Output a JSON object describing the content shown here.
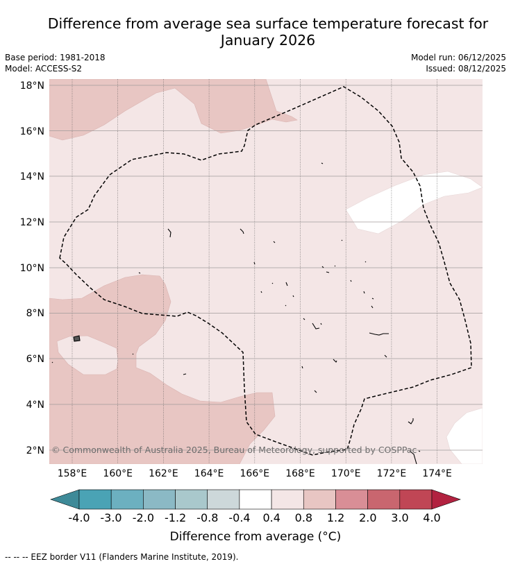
{
  "title": "Difference from average sea surface temperature forecast for January 2026",
  "title_line1": "Difference from average sea surface temperature forecast for",
  "title_line2": "January 2026",
  "meta": {
    "base_period": "Base period: 1981-2018",
    "model": "Model: ACCESS-S2",
    "model_run": "Model run: 06/12/2025",
    "issued": "Issued: 08/12/2025"
  },
  "map": {
    "lat_labels": [
      "18°N",
      "16°N",
      "14°N",
      "12°N",
      "10°N",
      "8°N",
      "6°N",
      "4°N",
      "2°N"
    ],
    "lon_labels": [
      "158°E",
      "160°E",
      "162°E",
      "164°E",
      "166°E",
      "168°E",
      "170°E",
      "172°E",
      "174°E"
    ],
    "copyright": "© Commonwealth of Australia 2025, Bureau of Meteorology, supported by COSPPac"
  },
  "legend": {
    "tick_labels": [
      "-4.0",
      "-3.0",
      "-2.0",
      "-1.2",
      "-0.8",
      "-0.4",
      "0.4",
      "0.8",
      "1.2",
      "2.0",
      "3.0",
      "4.0"
    ],
    "colors": {
      "under": "#3e8a98",
      "bins": [
        "#4aa3b5",
        "#6cb0c0",
        "#8bb9c5",
        "#a9c8cc",
        "#cdd8da",
        "#ffffff",
        "#f4e6e6",
        "#e8c6c3",
        "#d98e96",
        "#c9666f",
        "#c04655"
      ],
      "over": "#b22240"
    },
    "title": "Difference from average (°C)"
  },
  "footnote": "-- -- -- EEZ border V11 (Flanders Marine Institute, 2019)."
}
